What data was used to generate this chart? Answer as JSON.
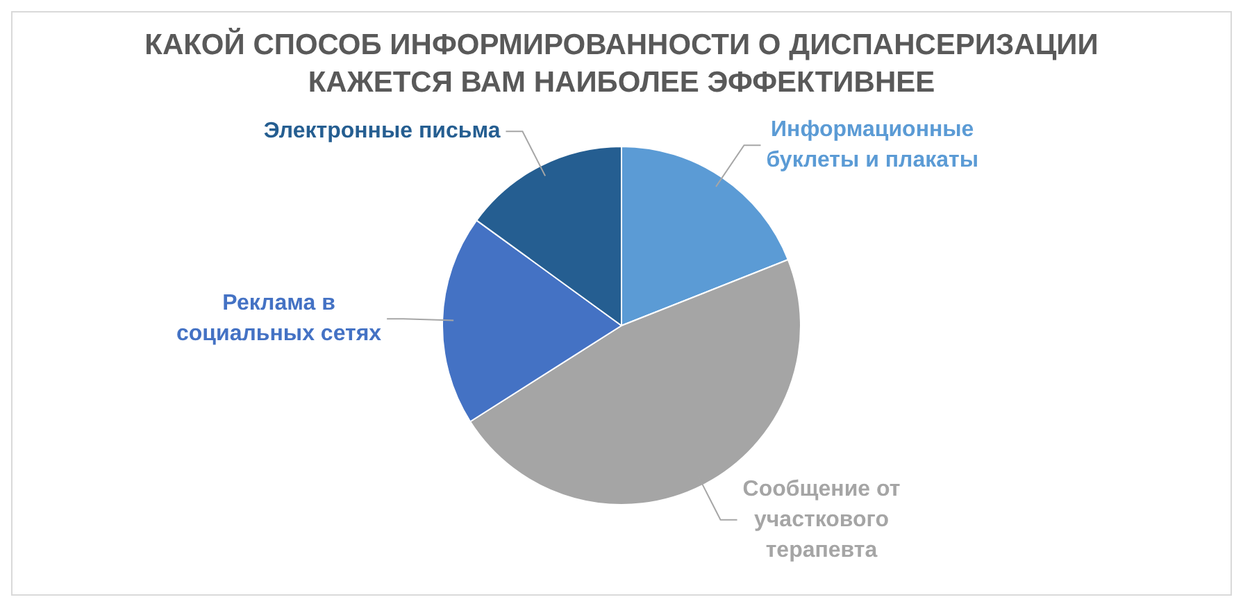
{
  "chart_data": {
    "type": "pie",
    "title": "КАКОЙ СПОСОБ ИНФОРМИРОВАННОСТИ О ДИСПАНСЕРИЗАЦИИ КАЖЕТСЯ ВАМ НАИБОЛЕЕ ЭФФЕКТИВНЕЕ",
    "categories": [
      "Информационные буклеты и плакаты",
      "Сообщение от участкового терапевта",
      "Реклама в социальных сетях",
      "Электронные письма"
    ],
    "values": [
      19,
      47,
      19,
      15
    ],
    "colors": [
      "#5b9bd5",
      "#a5a5a5",
      "#4472c4",
      "#255e91"
    ],
    "legend": false
  }
}
